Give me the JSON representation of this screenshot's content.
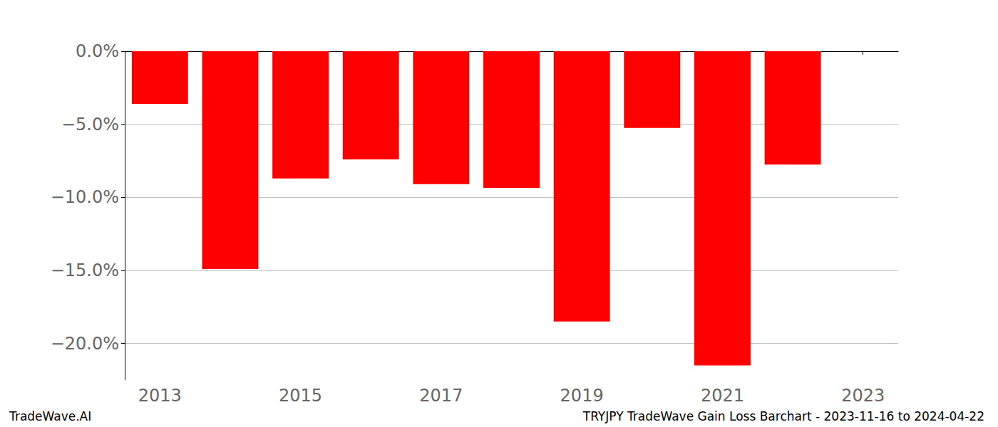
{
  "chart_data": {
    "type": "bar",
    "title": "TRYJPY TradeWave Gain Loss Barchart - 2023-11-16 to 2024-04-22",
    "annotations": [
      "TradeWave.AI"
    ],
    "categories": [
      "2013",
      null,
      "2015",
      null,
      "2017",
      null,
      "2019",
      null,
      "2021",
      null,
      "2023"
    ],
    "values": [
      -3.6,
      -14.9,
      -8.7,
      -7.4,
      -9.1,
      -9.35,
      -18.5,
      -5.25,
      -21.5,
      -7.75,
      null
    ],
    "color": "#ff0000",
    "ylim": [
      -22.5,
      0
    ],
    "yticks": [
      {
        "value": -20,
        "label": "−20.0%"
      },
      {
        "value": -15,
        "label": "−15.0%"
      },
      {
        "value": -10,
        "label": "−10.0%"
      },
      {
        "value": -5,
        "label": "−5.0%"
      },
      {
        "value": 0,
        "label": "0.0%"
      }
    ],
    "grid": true
  }
}
